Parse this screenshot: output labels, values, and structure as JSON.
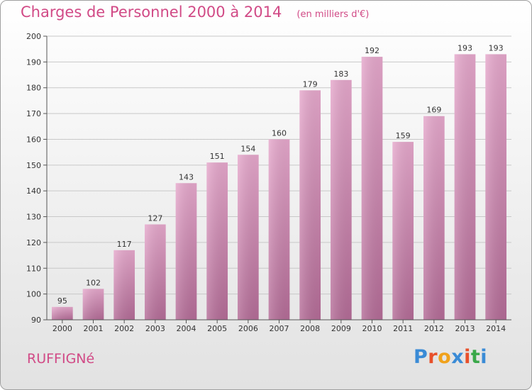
{
  "chart_data": {
    "type": "bar",
    "title": "Charges de Personnel 2000 à 2014",
    "subtitle": "(en milliers d'€)",
    "categories": [
      "2000",
      "2001",
      "2002",
      "2003",
      "2004",
      "2005",
      "2006",
      "2007",
      "2008",
      "2009",
      "2010",
      "2011",
      "2012",
      "2013",
      "2014"
    ],
    "values": [
      95,
      102,
      117,
      127,
      143,
      151,
      154,
      160,
      179,
      183,
      192,
      159,
      169,
      193,
      193
    ],
    "ylim": [
      90,
      200
    ],
    "yticks": [
      90,
      100,
      110,
      120,
      130,
      140,
      150,
      160,
      170,
      180,
      190,
      200
    ],
    "grid": true,
    "bar_color": "#d986b4"
  },
  "commune": "RUFFIGNé",
  "logo": {
    "text": "Proxiti",
    "colors": [
      "#3a8bd6",
      "#e8502a",
      "#f0a21c",
      "#3a8bd6",
      "#e8502a",
      "#3aa84a",
      "#3a8bd6"
    ]
  }
}
